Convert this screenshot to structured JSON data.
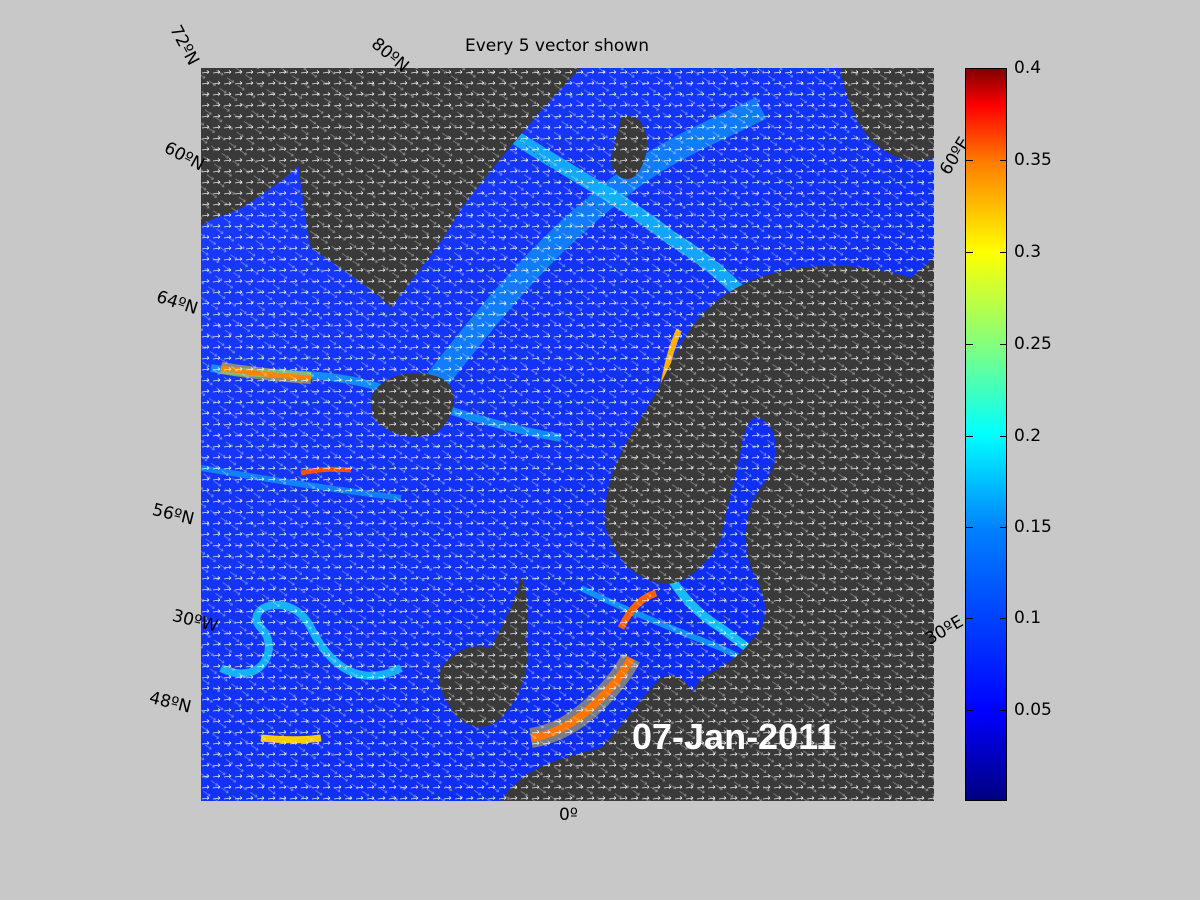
{
  "title": "Every 5 vector shown",
  "date_label": "07-Jan-2011",
  "lat_labels": [
    "72ºN",
    "60ºN",
    "64ºN",
    "56ºN",
    "48ºN"
  ],
  "lon_labels": [
    "80ºN",
    "60ºE",
    "30ºE",
    "30ºW",
    "0º"
  ],
  "colorbar": {
    "ticks": [
      "0.4",
      "0.35",
      "0.3",
      "0.25",
      "0.2",
      "0.15",
      "0.1",
      "0.05"
    ],
    "min": 0,
    "max": 0.4,
    "colormap": "jet"
  },
  "colors": {
    "background": "#c8c8c8",
    "land": "#3a3a3a",
    "ocean_low": "#1030ff",
    "ocean_high": "#00e5ff",
    "vector": "#ffffff"
  }
}
